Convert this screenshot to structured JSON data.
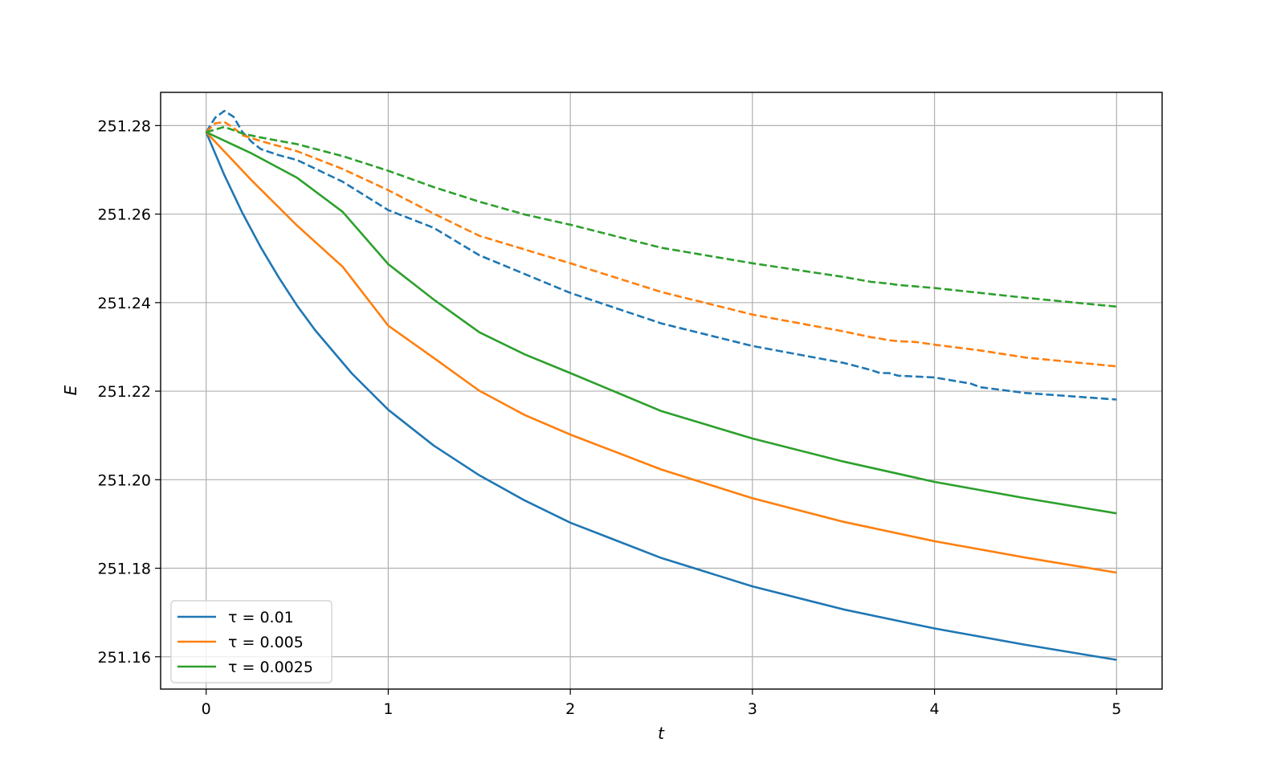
{
  "chart_data": {
    "type": "line",
    "xlabel": "t",
    "ylabel": "E",
    "xlim": [
      -0.25,
      5.25
    ],
    "ylim": [
      251.1527,
      251.2875
    ],
    "xticks": [
      0,
      1,
      2,
      3,
      4,
      5
    ],
    "xtick_labels": [
      "0",
      "1",
      "2",
      "3",
      "4",
      "5"
    ],
    "yticks": [
      251.16,
      251.18,
      251.2,
      251.22,
      251.24,
      251.26,
      251.28
    ],
    "ytick_labels": [
      "251.16",
      "251.18",
      "251.20",
      "251.22",
      "251.24",
      "251.26",
      "251.28"
    ],
    "grid": true,
    "legend_position": "lower-left",
    "legend": [
      "τ = 0.01",
      "τ = 0.005",
      "τ = 0.0025"
    ],
    "series": [
      {
        "name": "τ = 0.01",
        "color": "#1f77b4",
        "style": "solid",
        "x": [
          0,
          0.1,
          0.2,
          0.3,
          0.4,
          0.5,
          0.6,
          0.8,
          1.0,
          1.25,
          1.5,
          1.75,
          2.0,
          2.5,
          3.0,
          3.5,
          4.0,
          4.5,
          5.0
        ],
        "y": [
          251.2785,
          251.2688,
          251.2602,
          251.2525,
          251.2456,
          251.2393,
          251.2337,
          251.224,
          251.2158,
          251.2077,
          251.201,
          251.1953,
          251.1903,
          251.1823,
          251.1759,
          251.1707,
          251.1664,
          251.1627,
          251.1593
        ]
      },
      {
        "name": "τ = 0.005",
        "color": "#ff7f0e",
        "style": "solid",
        "x": [
          0,
          0.25,
          0.5,
          0.75,
          1.0,
          1.25,
          1.5,
          1.75,
          2.0,
          2.5,
          3.0,
          3.5,
          4.0,
          4.5,
          5.0
        ],
        "y": [
          251.2785,
          251.2676,
          251.2574,
          251.2481,
          251.2348,
          251.2275,
          251.2201,
          251.2146,
          251.2102,
          251.2023,
          251.1958,
          251.1905,
          251.1861,
          251.1824,
          251.179
        ]
      },
      {
        "name": "τ = 0.0025",
        "color": "#2ca02c",
        "style": "solid",
        "x": [
          0,
          0.25,
          0.5,
          0.75,
          1.0,
          1.25,
          1.5,
          1.75,
          2.0,
          2.5,
          3.0,
          3.5,
          4.0,
          4.5,
          5.0
        ],
        "y": [
          251.2785,
          251.2737,
          251.2682,
          251.2605,
          251.2487,
          251.2407,
          251.2333,
          251.2283,
          251.2241,
          251.2155,
          251.2093,
          251.2041,
          251.1995,
          251.1958,
          251.1924
        ]
      },
      {
        "color": "#1f77b4",
        "style": "dashed",
        "x": [
          0,
          0.05,
          0.1,
          0.15,
          0.2,
          0.25,
          0.3,
          0.4,
          0.5,
          0.75,
          1.0,
          1.25,
          1.5,
          2.0,
          2.5,
          3.0,
          3.5,
          3.65,
          3.7,
          3.75,
          3.8,
          3.85,
          4.0,
          4.2,
          4.25,
          4.5,
          5.0
        ],
        "y": [
          251.2785,
          251.2818,
          251.2833,
          251.282,
          251.2785,
          251.2763,
          251.2747,
          251.2733,
          251.2722,
          251.2673,
          251.2609,
          251.2569,
          251.2507,
          251.2422,
          251.2353,
          251.2302,
          251.2264,
          251.2248,
          251.2241,
          251.2241,
          251.2235,
          251.2234,
          251.2231,
          251.2217,
          251.2209,
          251.2196,
          251.2181
        ]
      },
      {
        "color": "#ff7f0e",
        "style": "dashed",
        "x": [
          0,
          0.05,
          0.1,
          0.15,
          0.2,
          0.3,
          0.5,
          0.75,
          1.0,
          1.25,
          1.5,
          2.0,
          2.5,
          3.0,
          3.5,
          3.65,
          3.7,
          3.75,
          3.8,
          3.9,
          4.0,
          4.25,
          4.5,
          5.0
        ],
        "y": [
          251.2785,
          251.2805,
          251.2808,
          251.2795,
          251.2778,
          251.2765,
          251.2742,
          251.2702,
          251.2654,
          251.2601,
          251.2551,
          251.2489,
          251.2424,
          251.2373,
          251.2335,
          251.2322,
          251.2319,
          251.2315,
          251.2313,
          251.2311,
          251.2305,
          251.2292,
          251.2276,
          251.2256
        ]
      },
      {
        "color": "#2ca02c",
        "style": "dashed",
        "x": [
          0,
          0.1,
          0.2,
          0.3,
          0.5,
          0.75,
          1.0,
          1.25,
          1.5,
          1.75,
          2.0,
          2.5,
          3.0,
          3.5,
          3.65,
          3.75,
          3.8,
          4.0,
          4.5,
          5.0
        ],
        "y": [
          251.2785,
          251.2797,
          251.2782,
          251.2773,
          251.2758,
          251.2731,
          251.2698,
          251.2661,
          251.2628,
          251.2599,
          251.2576,
          251.2524,
          251.2489,
          251.2458,
          251.2447,
          251.2443,
          251.244,
          251.2433,
          251.2411,
          251.2391
        ]
      }
    ]
  }
}
